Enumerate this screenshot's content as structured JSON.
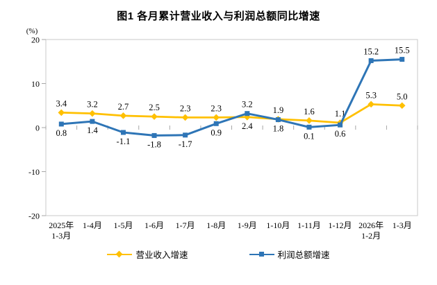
{
  "chart_data": {
    "type": "line",
    "title": "图1 各月累计营业收入与利润总额同比增速",
    "unit_label": "(%)",
    "categories": [
      [
        "2025年",
        "1-3月"
      ],
      [
        "1-4月"
      ],
      [
        "1-5月"
      ],
      [
        "1-6月"
      ],
      [
        "1-7月"
      ],
      [
        "1-8月"
      ],
      [
        "1-9月"
      ],
      [
        "1-10月"
      ],
      [
        "1-11月"
      ],
      [
        "1-12月"
      ],
      [
        "2026年",
        "1-2月"
      ],
      [
        "1-3月"
      ]
    ],
    "series": [
      {
        "name": "营业收入增速",
        "color": "#FFC000",
        "marker": "diamond",
        "line_width": 2.75,
        "values": [
          3.4,
          3.2,
          2.7,
          2.5,
          2.3,
          2.3,
          2.4,
          1.9,
          1.6,
          1.1,
          5.3,
          5.0
        ],
        "label_side": [
          "above",
          "above",
          "above",
          "above",
          "above",
          "above",
          "below",
          "above",
          "above",
          "above",
          "above",
          "above"
        ]
      },
      {
        "name": "利润总额增速",
        "color": "#2E75B6",
        "marker": "square",
        "line_width": 3,
        "values": [
          0.8,
          1.4,
          -1.1,
          -1.8,
          -1.7,
          0.9,
          3.2,
          1.8,
          0.1,
          0.6,
          15.2,
          15.5
        ],
        "label_side": [
          "below",
          "below",
          "below",
          "below",
          "below",
          "below",
          "above",
          "below",
          "below",
          "below",
          "above",
          "above"
        ]
      }
    ],
    "ylim": [
      -20,
      20
    ],
    "yticks": [
      20,
      10,
      0,
      -10,
      -20
    ],
    "grid": false,
    "legend_position": "bottom",
    "axis_color": "#c9c9c9",
    "tick_color": "#a6a6a6"
  }
}
